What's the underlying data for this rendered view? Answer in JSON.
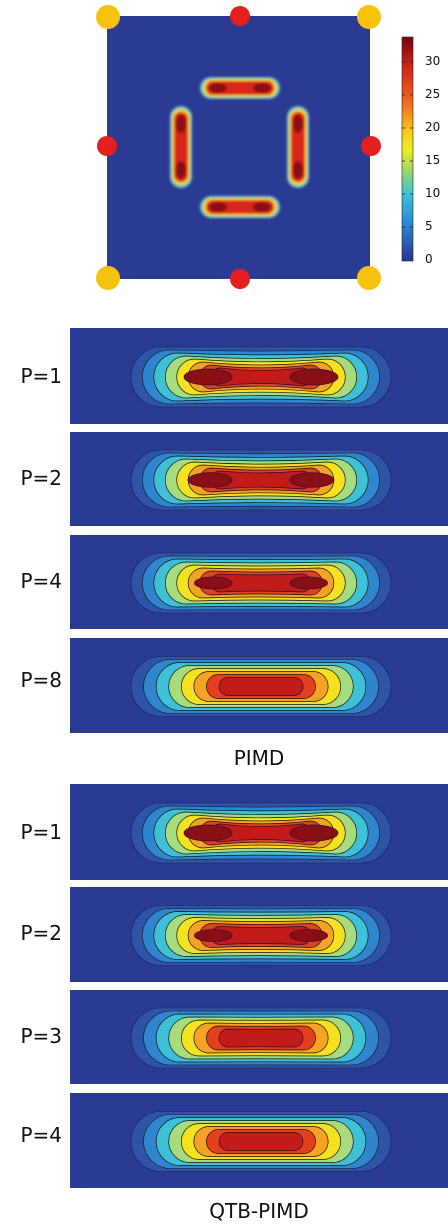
{
  "top_map": {
    "colorbar": {
      "ticks": [
        "30",
        "25",
        "20",
        "15",
        "10",
        "5",
        "0"
      ],
      "colors": [
        "#8b0000",
        "#d62a1f",
        "#f4a020",
        "#f7e31a",
        "#7fd6c2",
        "#2aa7e0",
        "#2a3a92"
      ]
    },
    "site_colors": {
      "corner": "#f7c20e",
      "edge": "#e41f1f"
    }
  },
  "pimd": {
    "caption": "PIMD",
    "panels": [
      {
        "label": "P=1",
        "shape": "split",
        "split": 1.0
      },
      {
        "label": "P=2",
        "shape": "split",
        "split": 0.75
      },
      {
        "label": "P=4",
        "shape": "split",
        "split": 0.35
      },
      {
        "label": "P=8",
        "shape": "single",
        "split": 0.0
      }
    ]
  },
  "qtb": {
    "caption": "QTB-PIMD",
    "panels": [
      {
        "label": "P=1",
        "shape": "split",
        "split": 1.0
      },
      {
        "label": "P=2",
        "shape": "split",
        "split": 0.35
      },
      {
        "label": "P=3",
        "shape": "single",
        "split": 0.1
      },
      {
        "label": "P=4",
        "shape": "single",
        "split": 0.0
      }
    ]
  }
}
